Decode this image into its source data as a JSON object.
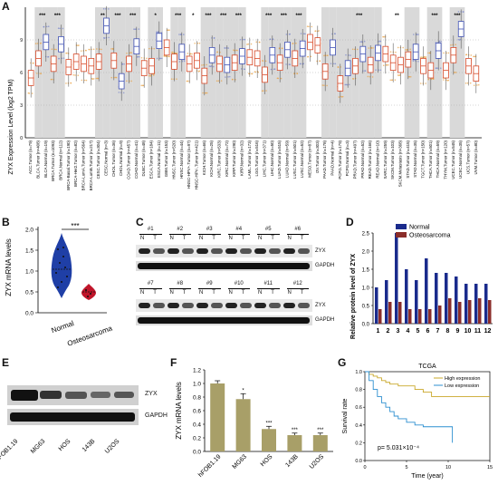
{
  "panels": {
    "A": "A",
    "B": "B",
    "C": "C",
    "D": "D",
    "E": "E",
    "F": "F",
    "G": "G"
  },
  "panelA": {
    "ylabel": "ZYX Expression Level (log2 TPM)",
    "yticks": [
      "0",
      "3",
      "6",
      "9"
    ],
    "categories": [
      "ACC.Tumor (n=79)",
      "BLCA.Tumor (n=408)",
      "BLCA.Normal (n=19)",
      "BRCA.Tumor (n=1093)",
      "BRCA.Normal (n=112)",
      "BRCA-Basal.Tumor (n=190)",
      "BRCA-Her2.Tumor (n=82)",
      "BRCA-LumA.Tumor (n=564)",
      "BRCA-LumB.Tumor (n=217)",
      "CESC.Tumor (n=304)",
      "CESC.Normal (n=3)",
      "CHOL.Tumor (n=36)",
      "CHOL.Normal (n=9)",
      "COAD.Tumor (n=457)",
      "COAD.Normal (n=41)",
      "DLBC.Tumor (n=48)",
      "ESCA.Tumor (n=184)",
      "ESCA.Normal (n=11)",
      "GBM.Tumor (n=153)",
      "HNSC.Tumor (n=520)",
      "HNSC.Normal (n=44)",
      "HNSC-HPV+.Tumor (n=97)",
      "HNSC-HPV-.Tumor (n=421)",
      "KICH.Tumor (n=66)",
      "KICH.Normal (n=25)",
      "KIRC.Tumor (n=533)",
      "KIRC.Normal (n=72)",
      "KIRP.Tumor (n=290)",
      "KIRP.Normal (n=32)",
      "LAML.Tumor (n=173)",
      "LGG.Tumor (n=516)",
      "LIHC.Tumor (n=371)",
      "LIHC.Normal (n=50)",
      "LUAD.Tumor (n=515)",
      "LUAD.Normal (n=59)",
      "LUSC.Tumor (n=501)",
      "LUSC.Normal (n=52)",
      "MESO.Tumor (n=87)",
      "OV.Tumor (n=303)",
      "PAAD.Tumor (n=178)",
      "PAAD.Normal (n=4)",
      "PCPG.Tumor (n=179)",
      "PCPG.Normal (n=3)",
      "PRAD.Tumor (n=497)",
      "PRAD.Normal (n=52)",
      "READ.Tumor (n=166)",
      "READ.Normal (n=10)",
      "SARC.Tumor (n=259)",
      "SKCM.Tumor (n=103)",
      "SKCM.Metastasis (n=368)",
      "STAD.Tumor (n=415)",
      "STAD.Normal (n=35)",
      "TGCT.Tumor (n=150)",
      "THCA.Tumor (n=501)",
      "THCA.Normal (n=59)",
      "THYM.Tumor (n=120)",
      "UCEC.Tumor (n=545)",
      "UCEC.Normal (n=35)",
      "UCS.Tumor (n=57)",
      "UVM.Tumor (n=80)"
    ],
    "significance": [
      {
        "pair": "BLCA",
        "label": "***"
      },
      {
        "pair": "BRCA",
        "label": "***"
      },
      {
        "pair": "CESC",
        "label": "**"
      },
      {
        "pair": "CHOL",
        "label": "***"
      },
      {
        "pair": "COAD",
        "label": "***"
      },
      {
        "pair": "ESCA",
        "label": "*"
      },
      {
        "pair": "HNSC",
        "label": "***"
      },
      {
        "pair": "HNSC-HPV",
        "label": "*"
      },
      {
        "pair": "KICH",
        "label": "***"
      },
      {
        "pair": "KIRC",
        "label": "***"
      },
      {
        "pair": "KIRP",
        "label": "***"
      },
      {
        "pair": "LIHC",
        "label": "***"
      },
      {
        "pair": "LUAD",
        "label": "***"
      },
      {
        "pair": "LUSC",
        "label": "***"
      },
      {
        "pair": "PRAD",
        "label": "***"
      },
      {
        "pair": "SKCM",
        "label": "**"
      },
      {
        "pair": "THCA",
        "label": "***"
      },
      {
        "pair": "UCEC",
        "label": "***"
      }
    ]
  },
  "panelB": {
    "ylabel": "ZYX mRNA levels",
    "yticks": [
      "0.0",
      "0.5",
      "1.0",
      "1.5",
      "2.0"
    ],
    "ylim": [
      0,
      2.0
    ],
    "groups": [
      "Normal",
      "Osteosarcoma"
    ],
    "sig": "***",
    "colors": {
      "Normal": "#1f3fa6",
      "Osteosarcoma": "#c0152a"
    }
  },
  "panelC": {
    "top_samples": [
      "#1",
      "#2",
      "#3",
      "#4",
      "#5",
      "#6"
    ],
    "bottom_samples": [
      "#7",
      "#8",
      "#9",
      "#10",
      "#11",
      "#12"
    ],
    "lane_labels": [
      "N",
      "T"
    ],
    "proteins": [
      "ZYX",
      "GAPDH"
    ]
  },
  "panelE": {
    "proteins": [
      "ZYX",
      "GAPDH"
    ]
  },
  "chart_data": [
    {
      "type": "bar",
      "title": "",
      "xlabel": "",
      "ylabel": "Relative protein level of ZYX",
      "ylim": [
        0,
        2.5
      ],
      "yticks": [
        "0.0",
        "0.5",
        "1.0",
        "1.5",
        "2.0",
        "2.5"
      ],
      "categories": [
        "1",
        "2",
        "3",
        "4",
        "5",
        "6",
        "7",
        "8",
        "9",
        "10",
        "11",
        "12"
      ],
      "legend": "top-right",
      "series": [
        {
          "name": "Normal",
          "color": "#1a2b8c",
          "values": [
            1.0,
            1.2,
            2.5,
            1.5,
            1.2,
            1.8,
            1.4,
            1.4,
            1.3,
            1.1,
            1.1,
            1.1
          ]
        },
        {
          "name": "Osteosarcoma",
          "color": "#8b2d2a",
          "values": [
            0.4,
            0.6,
            0.6,
            0.4,
            0.4,
            0.4,
            0.5,
            0.7,
            0.6,
            0.65,
            0.7,
            0.65
          ]
        }
      ]
    },
    {
      "type": "bar",
      "title": "",
      "xlabel": "",
      "ylabel": "ZYX mRNA levels",
      "ylim": [
        0,
        1.2
      ],
      "yticks": [
        "0.0",
        "0.2",
        "0.4",
        "0.6",
        "0.8",
        "1.0",
        "1.2"
      ],
      "categories": [
        "hFOB1.19",
        "MG63",
        "HOS",
        "143B",
        "U2OS"
      ],
      "color": "#a89f68",
      "values": [
        1.0,
        0.77,
        0.33,
        0.24,
        0.24
      ],
      "errors": [
        0.04,
        0.08,
        0.04,
        0.03,
        0.03
      ],
      "sig": [
        "",
        "*",
        "***",
        "***",
        "***"
      ]
    },
    {
      "type": "line",
      "title": "TCGA",
      "xlabel": "Time (year)",
      "ylabel": "Survival rate",
      "xlim": [
        0,
        15
      ],
      "ylim": [
        0,
        1.0
      ],
      "xticks": [
        "0",
        "5",
        "10",
        "15"
      ],
      "yticks": [
        "0.0",
        "0.2",
        "0.4",
        "0.6",
        "0.8",
        "1.0"
      ],
      "legend": "top-right",
      "annotation": "p= 5.031×10⁻⁴",
      "series": [
        {
          "name": "High expression",
          "color": "#c9a82a",
          "x": [
            0,
            0.5,
            1,
            1.5,
            2,
            2.5,
            3,
            4,
            5,
            6,
            7,
            8,
            9,
            10,
            11,
            12,
            15
          ],
          "y": [
            1.0,
            0.97,
            0.95,
            0.93,
            0.9,
            0.88,
            0.86,
            0.84,
            0.84,
            0.8,
            0.77,
            0.72,
            0.72,
            0.72,
            0.72,
            0.72,
            0.72
          ]
        },
        {
          "name": "Low expression",
          "color": "#2d8fd0",
          "x": [
            0,
            0.5,
            1,
            1.5,
            2,
            2.5,
            3,
            3.5,
            4,
            5,
            6,
            7,
            8,
            9,
            10,
            10.5
          ],
          "y": [
            1.0,
            0.9,
            0.8,
            0.72,
            0.65,
            0.6,
            0.55,
            0.5,
            0.47,
            0.43,
            0.4,
            0.38,
            0.38,
            0.38,
            0.38,
            0.2
          ]
        }
      ]
    }
  ]
}
